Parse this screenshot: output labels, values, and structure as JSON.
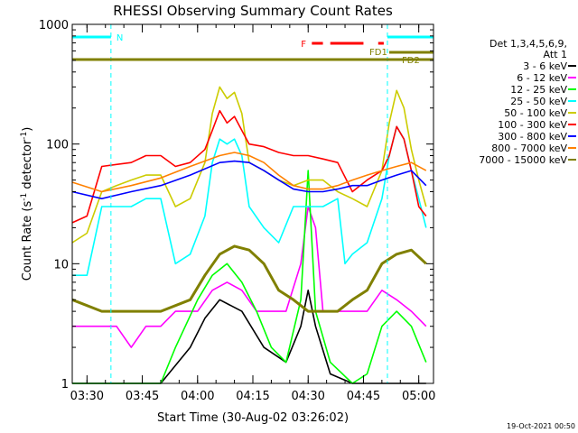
{
  "chart_data": {
    "type": "line",
    "title": "RHESSI Observing Summary Count Rates",
    "xlabel": "Start Time (30-Aug-02 03:26:02)",
    "ylabel": "Count Rate (s⁻¹ detector⁻¹)",
    "ylabel_main": "Count Rate (s",
    "ylabel_exp1": "-1",
    "ylabel_mid": " detector",
    "ylabel_exp2": "-1",
    "ylabel_end": ")",
    "x_unit": "minutes after 03:26:02",
    "xlim": [
      0,
      98
    ],
    "ylim": [
      1,
      1000
    ],
    "yscale": "log",
    "xticks": [
      {
        "label": "03:30",
        "value": 4
      },
      {
        "label": "03:45",
        "value": 19
      },
      {
        "label": "04:00",
        "value": 34
      },
      {
        "label": "04:15",
        "value": 49
      },
      {
        "label": "04:30",
        "value": 64
      },
      {
        "label": "04:45",
        "value": 79
      },
      {
        "label": "05:00",
        "value": 94
      }
    ],
    "yticks": [
      {
        "label": "1",
        "value": 1
      },
      {
        "label": "10",
        "value": 10
      },
      {
        "label": "100",
        "value": 100
      },
      {
        "label": "1000",
        "value": 1000
      }
    ],
    "legend_header": [
      "Det 1,3,4,5,6,9,",
      "Att 1"
    ],
    "legend_position": "right",
    "series": [
      {
        "name": "3 - 6 keV",
        "color": "#000000",
        "x": [
          0,
          12,
          24,
          32,
          36,
          40,
          46,
          52,
          58,
          62,
          64,
          66,
          70,
          76,
          82,
          86,
          90,
          96
        ],
        "y": [
          1,
          1,
          1,
          2,
          3.5,
          5,
          4,
          2,
          1.5,
          3,
          6,
          3,
          1.2,
          1,
          1,
          1,
          1,
          1
        ]
      },
      {
        "name": "6 - 12 keV",
        "color": "#ff00ff",
        "x": [
          0,
          4,
          8,
          12,
          16,
          20,
          24,
          28,
          34,
          38,
          42,
          46,
          50,
          54,
          58,
          62,
          64,
          66,
          68,
          72,
          76,
          80,
          84,
          88,
          92,
          96
        ],
        "y": [
          3,
          3,
          3,
          3,
          2,
          3,
          3,
          4,
          4,
          6,
          7,
          6,
          4,
          4,
          4,
          10,
          30,
          20,
          4,
          4,
          4,
          4,
          6,
          5,
          4,
          3
        ]
      },
      {
        "name": "12 - 25 keV",
        "color": "#00ff00",
        "x": [
          0,
          8,
          16,
          24,
          28,
          34,
          38,
          42,
          46,
          50,
          54,
          58,
          62,
          64,
          66,
          70,
          76,
          80,
          84,
          88,
          92,
          96
        ],
        "y": [
          1,
          1,
          1,
          1,
          2,
          5,
          8,
          10,
          7,
          4,
          2,
          1.5,
          5,
          60,
          4,
          1.5,
          1,
          1.2,
          3,
          4,
          3,
          1.5
        ]
      },
      {
        "name": "25 - 50 keV",
        "color": "#00ffff",
        "x": [
          0,
          4,
          8,
          16,
          20,
          24,
          28,
          32,
          36,
          38,
          40,
          42,
          44,
          46,
          48,
          52,
          56,
          60,
          64,
          68,
          72,
          74,
          76,
          80,
          84,
          86,
          88,
          90,
          92,
          94,
          96
        ],
        "y": [
          8,
          8,
          30,
          30,
          35,
          35,
          10,
          12,
          25,
          70,
          110,
          100,
          110,
          80,
          30,
          20,
          15,
          30,
          30,
          30,
          35,
          10,
          12,
          15,
          35,
          80,
          140,
          110,
          60,
          35,
          20
        ]
      },
      {
        "name": "50 - 100 keV",
        "color": "#cccc00",
        "x": [
          0,
          4,
          8,
          12,
          16,
          20,
          24,
          28,
          32,
          36,
          38,
          40,
          42,
          44,
          46,
          48,
          52,
          56,
          60,
          64,
          68,
          72,
          76,
          80,
          84,
          86,
          88,
          90,
          92,
          94,
          96
        ],
        "y": [
          15,
          18,
          40,
          45,
          50,
          55,
          55,
          30,
          35,
          70,
          180,
          300,
          240,
          270,
          180,
          70,
          60,
          50,
          45,
          50,
          50,
          40,
          35,
          30,
          60,
          150,
          280,
          200,
          90,
          50,
          30
        ]
      },
      {
        "name": "100 - 300 keV",
        "color": "#ff0000",
        "x": [
          0,
          4,
          8,
          16,
          20,
          24,
          28,
          32,
          36,
          38,
          40,
          42,
          44,
          46,
          48,
          52,
          56,
          60,
          64,
          68,
          72,
          76,
          80,
          84,
          86,
          88,
          90,
          92,
          94,
          96
        ],
        "y": [
          22,
          25,
          65,
          70,
          80,
          80,
          65,
          70,
          90,
          130,
          190,
          150,
          170,
          130,
          100,
          95,
          85,
          80,
          80,
          75,
          70,
          40,
          50,
          60,
          80,
          140,
          110,
          60,
          30,
          25
        ]
      },
      {
        "name": "300 - 800 keV",
        "color": "#0000ff",
        "x": [
          0,
          8,
          16,
          24,
          32,
          40,
          44,
          48,
          52,
          56,
          60,
          64,
          68,
          72,
          76,
          80,
          84,
          88,
          92,
          96
        ],
        "y": [
          40,
          35,
          40,
          45,
          55,
          70,
          72,
          70,
          60,
          50,
          42,
          40,
          40,
          42,
          45,
          45,
          50,
          55,
          60,
          45
        ]
      },
      {
        "name": "800 - 7000 keV",
        "color": "#ff8000",
        "x": [
          0,
          8,
          16,
          24,
          32,
          40,
          44,
          48,
          52,
          56,
          60,
          64,
          68,
          72,
          76,
          80,
          84,
          88,
          92,
          96
        ],
        "y": [
          48,
          40,
          45,
          52,
          65,
          80,
          85,
          80,
          70,
          55,
          45,
          42,
          42,
          45,
          50,
          55,
          60,
          65,
          70,
          60
        ]
      },
      {
        "name": "7000 - 15000 keV",
        "color": "#808000",
        "x": [
          0,
          8,
          16,
          24,
          32,
          36,
          40,
          44,
          48,
          52,
          56,
          60,
          64,
          68,
          72,
          76,
          80,
          84,
          88,
          92,
          96
        ],
        "y": [
          5,
          4,
          4,
          4,
          5,
          8,
          12,
          14,
          13,
          10,
          6,
          5,
          4,
          4,
          4,
          5,
          6,
          10,
          12,
          13,
          10
        ]
      }
    ],
    "annotations": {
      "night_label": "N",
      "flare_label": "F",
      "fd1_label": "FD1",
      "fd2_label": "FD2",
      "night_color": "#00ffff",
      "flare_color": "#ff0000",
      "fd_color": "#808000",
      "night_intervals": [
        [
          0,
          10.5
        ],
        [
          85.5,
          98
        ]
      ],
      "flare_intervals": [
        [
          65,
          68
        ],
        [
          70,
          79
        ],
        [
          83,
          84.5
        ]
      ],
      "fd1_interval": [
        86,
        98
      ],
      "fd2_interval": [
        0,
        98
      ]
    },
    "grid": false
  },
  "timestamp": "19-Oct-2021 00:50"
}
